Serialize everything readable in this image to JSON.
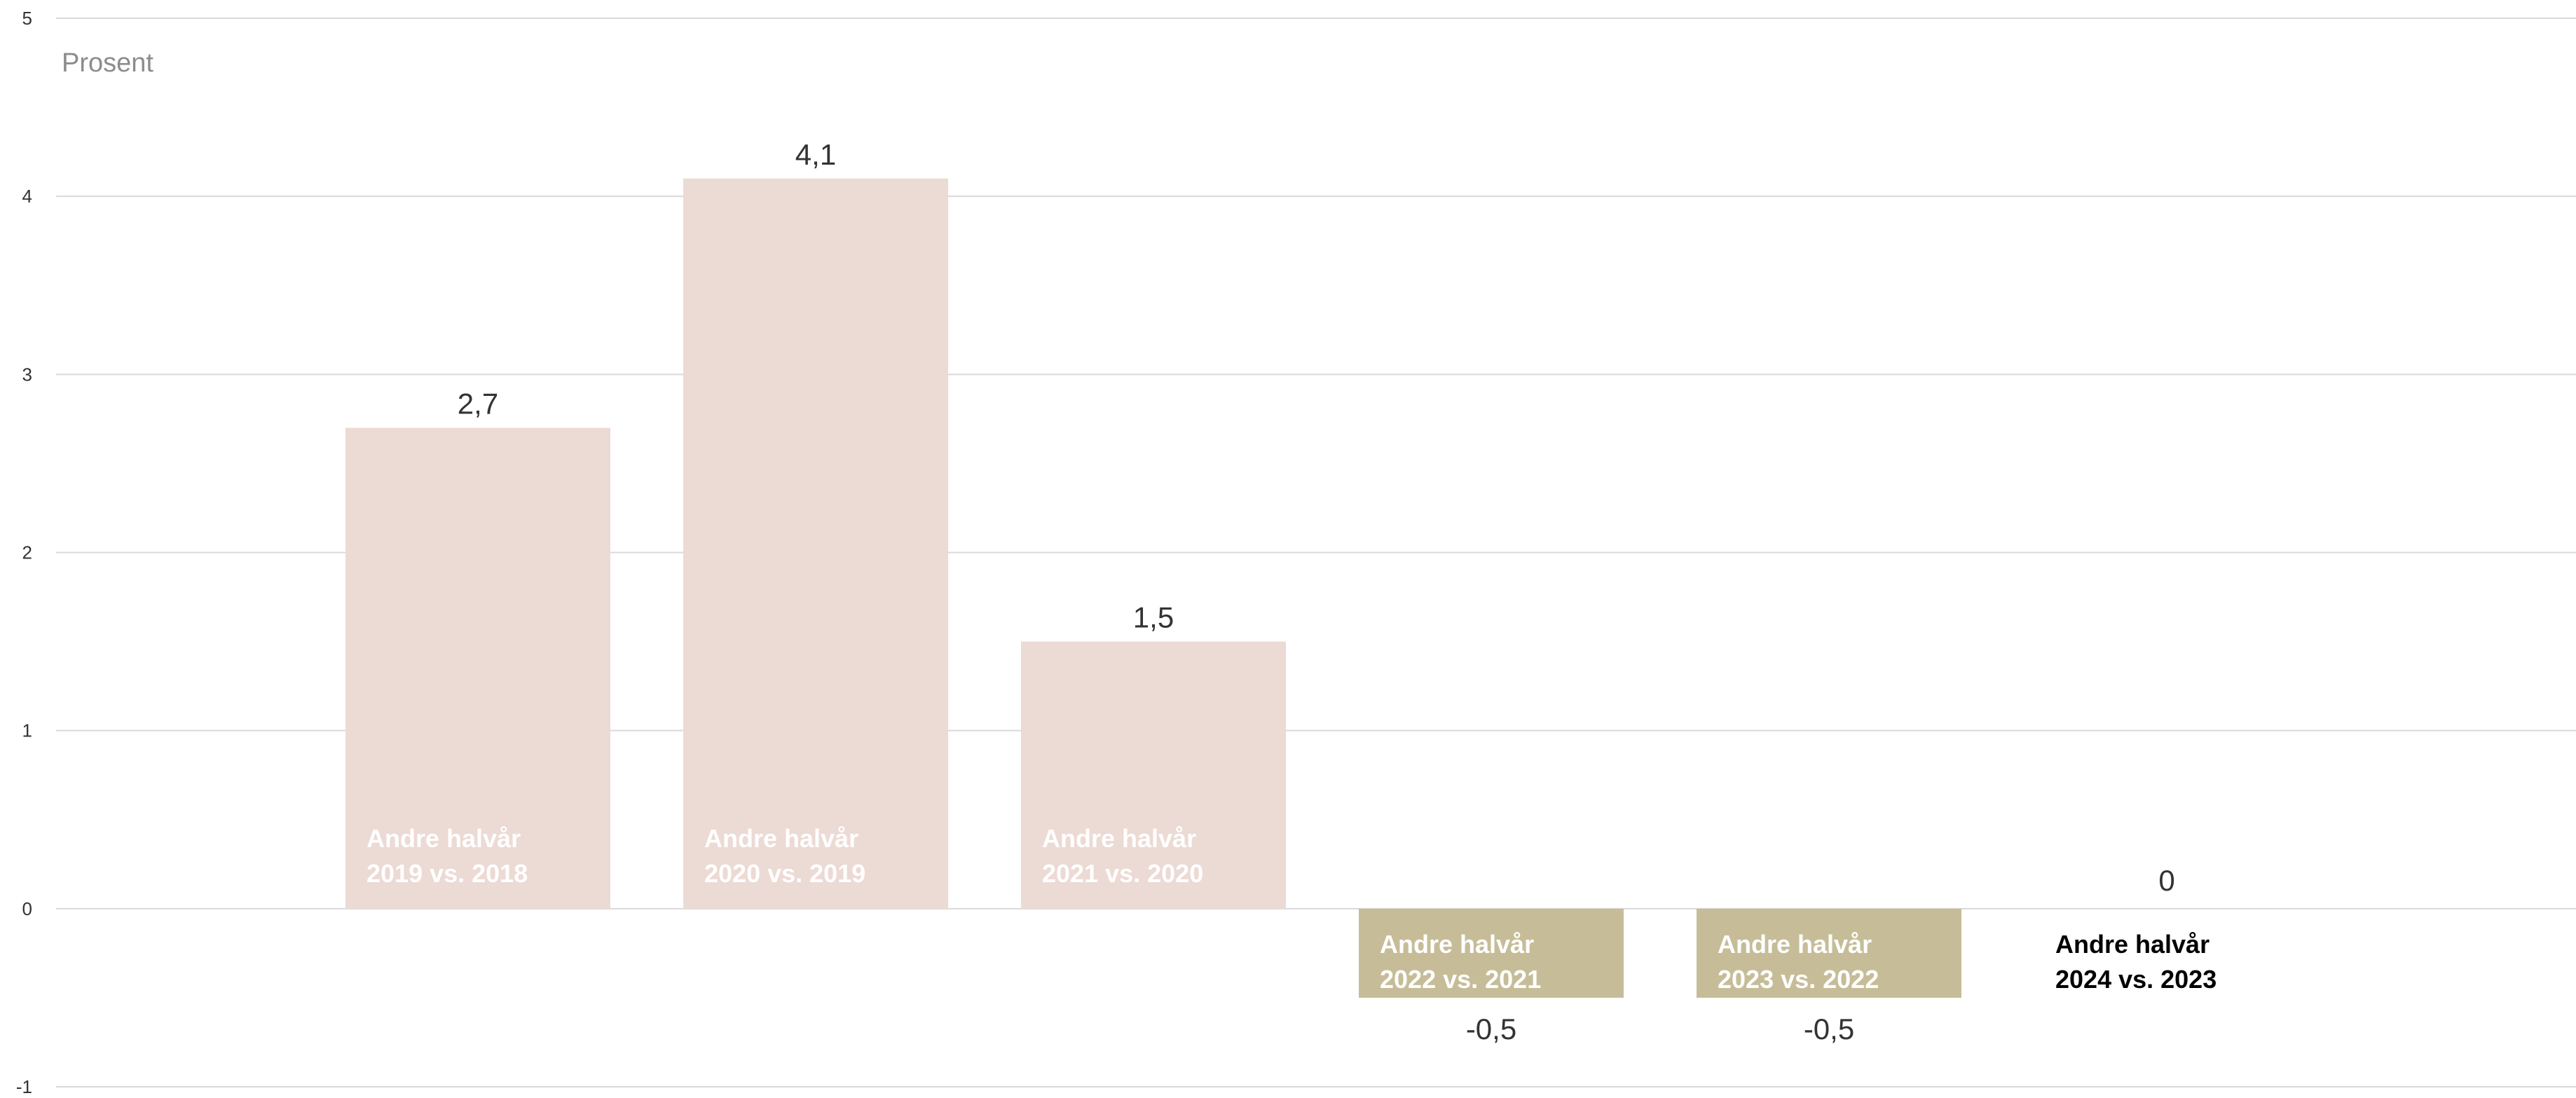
{
  "chart_data": {
    "type": "bar",
    "unit_label": "Prosent",
    "ylim": [
      -1,
      5
    ],
    "yticks": [
      -1,
      0,
      1,
      2,
      3,
      4,
      5
    ],
    "grid": true,
    "categories": [
      [
        "Andre halvår",
        "2019 vs. 2018"
      ],
      [
        "Andre halvår",
        "2020 vs. 2019"
      ],
      [
        "Andre halvår",
        "2021 vs. 2020"
      ],
      [
        "Andre halvår",
        "2022 vs. 2021"
      ],
      [
        "Andre halvår",
        "2023 vs. 2022"
      ],
      [
        "Andre halvår",
        "2024 vs. 2023"
      ]
    ],
    "values": [
      2.7,
      4.1,
      1.5,
      -0.5,
      -0.5,
      0
    ],
    "value_labels": [
      "2,7",
      "4,1",
      "1,5",
      "-0,5",
      "-0,5",
      "0"
    ],
    "colors": {
      "positive": "#ecdad4",
      "negative": "#c6bd98",
      "grid": "#d9d9d9",
      "label_on_bar": "#ffffff",
      "label_plain": "#000000"
    }
  }
}
